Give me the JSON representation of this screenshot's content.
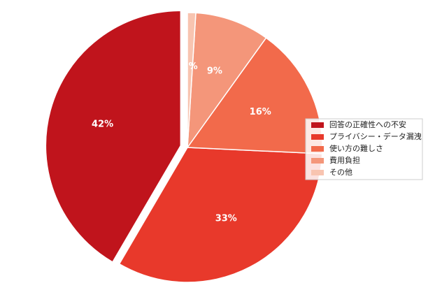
{
  "chart_data": {
    "type": "pie",
    "categories": [
      "回答の正確性への不安",
      "プライバシー・データ漏洩",
      "使い方の難しさ",
      "費用負担",
      "その他"
    ],
    "values": [
      42,
      33,
      16,
      9,
      1
    ],
    "value_labels": [
      "42%",
      "33%",
      "16%",
      "9%",
      "1%"
    ],
    "colors": [
      "#c0141c",
      "#e8392b",
      "#f26a4b",
      "#f4967a",
      "#f8c4b0"
    ],
    "explode": [
      true,
      false,
      false,
      false,
      false
    ],
    "legend": "right"
  }
}
